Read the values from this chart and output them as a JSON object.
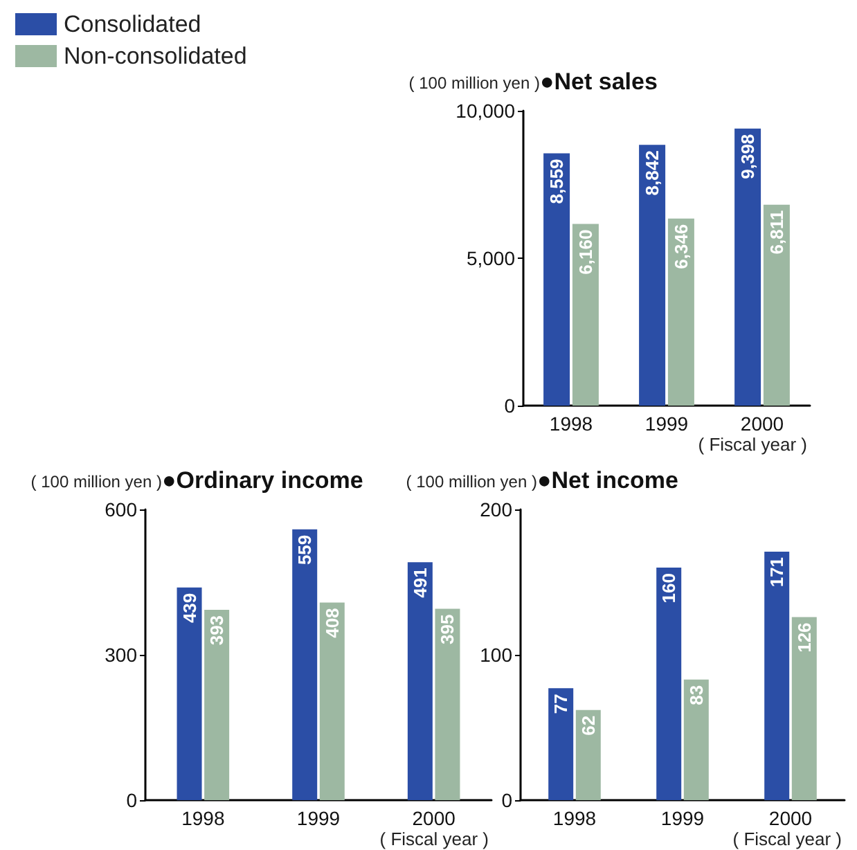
{
  "chart_data": [
    {
      "type": "bar",
      "title": "●Net sales",
      "ylabel": "( 100 million yen )",
      "xlabel": "( Fiscal year )",
      "categories": [
        "1998",
        "1999",
        "2000"
      ],
      "series": [
        {
          "name": "Consolidated",
          "color": "#2b4ea6",
          "values": [
            8559,
            8842,
            9398
          ],
          "value_labels": [
            "8,559",
            "8,842",
            "9,398"
          ]
        },
        {
          "name": "Non-consolidated",
          "color": "#9db8a2",
          "values": [
            6160,
            6346,
            6811
          ],
          "value_labels": [
            "6,160",
            "6,346",
            "6,811"
          ]
        }
      ],
      "ylim": [
        0,
        10000
      ],
      "yticks": [
        0,
        {
          "value": 5000,
          "label": "5,000"
        },
        {
          "value": 10000,
          "label": "10,000"
        }
      ],
      "legend": "top left",
      "grid": false
    },
    {
      "type": "bar",
      "title": "●Ordinary income",
      "ylabel": "( 100 million yen )",
      "xlabel": "( Fiscal year )",
      "categories": [
        "1998",
        "1999",
        "2000"
      ],
      "series": [
        {
          "color": "#2b4ea6",
          "values": [
            439,
            559,
            491
          ]
        },
        {
          "color": "#9db8a2",
          "values": [
            393,
            408,
            395
          ]
        }
      ],
      "ylim": [
        0,
        600
      ],
      "yticks": [
        0,
        300,
        600
      ],
      "data_labels": true,
      "grid": false
    },
    {
      "type": "bar",
      "title": "●Net income",
      "ylabel": "( 100 million yen )",
      "xlabel": "( Fiscal year )",
      "categories": [
        "1998",
        "1999",
        "2000"
      ],
      "series": [
        {
          "color": "#2b4ea6",
          "values": [
            77,
            160,
            171
          ]
        },
        {
          "color": "#9db8a2",
          "values": [
            62,
            83,
            126
          ]
        }
      ],
      "ylim": [
        0,
        200
      ],
      "yticks": [
        0,
        100,
        200
      ],
      "data_labels": true,
      "grid": false
    }
  ]
}
